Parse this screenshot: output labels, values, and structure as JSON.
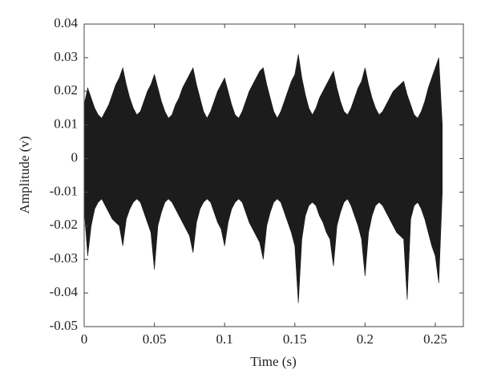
{
  "chart_data": {
    "type": "area",
    "xlabel": "Time (s)",
    "ylabel": "Amplitude (v)",
    "x": [
      0,
      0.0025,
      0.005,
      0.0075,
      0.01,
      0.0125,
      0.015,
      0.0175,
      0.02,
      0.0225,
      0.025,
      0.0275,
      0.03,
      0.0325,
      0.035,
      0.0375,
      0.04,
      0.0425,
      0.045,
      0.0475,
      0.05,
      0.0525,
      0.055,
      0.0575,
      0.06,
      0.0625,
      0.065,
      0.0675,
      0.07,
      0.0725,
      0.075,
      0.0775,
      0.08,
      0.0825,
      0.085,
      0.0875,
      0.09,
      0.0925,
      0.095,
      0.0975,
      0.1,
      0.1025,
      0.105,
      0.1075,
      0.11,
      0.1125,
      0.115,
      0.1175,
      0.12,
      0.1225,
      0.125,
      0.1275,
      0.13,
      0.1325,
      0.135,
      0.1375,
      0.14,
      0.1425,
      0.145,
      0.1475,
      0.15,
      0.1525,
      0.155,
      0.1575,
      0.16,
      0.1625,
      0.165,
      0.1675,
      0.17,
      0.1725,
      0.175,
      0.1775,
      0.18,
      0.1825,
      0.185,
      0.1875,
      0.19,
      0.1925,
      0.195,
      0.1975,
      0.2,
      0.2025,
      0.205,
      0.2075,
      0.21,
      0.2125,
      0.215,
      0.2175,
      0.22,
      0.2225,
      0.225,
      0.2275,
      0.23,
      0.2325,
      0.235,
      0.2375,
      0.24,
      0.2425,
      0.245,
      0.2475,
      0.25,
      0.2525,
      0.255
    ],
    "series": [
      {
        "color": "#1c1c1c",
        "values": [
          0.016,
          0.021,
          0.018,
          0.015,
          0.013,
          0.012,
          0.014,
          0.016,
          0.019,
          0.022,
          0.024,
          0.027,
          0.022,
          0.018,
          0.015,
          0.013,
          0.014,
          0.017,
          0.02,
          0.022,
          0.025,
          0.021,
          0.017,
          0.014,
          0.012,
          0.013,
          0.016,
          0.018,
          0.021,
          0.023,
          0.025,
          0.027,
          0.022,
          0.018,
          0.014,
          0.012,
          0.014,
          0.017,
          0.02,
          0.022,
          0.024,
          0.02,
          0.016,
          0.013,
          0.012,
          0.014,
          0.017,
          0.02,
          0.022,
          0.024,
          0.026,
          0.027,
          0.022,
          0.018,
          0.014,
          0.012,
          0.014,
          0.017,
          0.02,
          0.023,
          0.025,
          0.031,
          0.024,
          0.019,
          0.015,
          0.013,
          0.015,
          0.018,
          0.02,
          0.022,
          0.024,
          0.026,
          0.021,
          0.017,
          0.014,
          0.013,
          0.015,
          0.018,
          0.021,
          0.023,
          0.027,
          0.022,
          0.018,
          0.015,
          0.013,
          0.014,
          0.016,
          0.018,
          0.02,
          0.021,
          0.022,
          0.023,
          0.019,
          0.016,
          0.013,
          0.012,
          0.014,
          0.017,
          0.021,
          0.024,
          0.027,
          0.03,
          0.01
        ]
      },
      {
        "color": "#1c1c1c",
        "values": [
          -0.015,
          -0.029,
          -0.02,
          -0.015,
          -0.013,
          -0.012,
          -0.014,
          -0.016,
          -0.018,
          -0.019,
          -0.02,
          -0.026,
          -0.018,
          -0.015,
          -0.013,
          -0.012,
          -0.013,
          -0.016,
          -0.019,
          -0.022,
          -0.033,
          -0.02,
          -0.016,
          -0.013,
          -0.012,
          -0.013,
          -0.015,
          -0.017,
          -0.019,
          -0.021,
          -0.023,
          -0.028,
          -0.019,
          -0.015,
          -0.013,
          -0.012,
          -0.013,
          -0.016,
          -0.019,
          -0.021,
          -0.026,
          -0.019,
          -0.015,
          -0.013,
          -0.012,
          -0.013,
          -0.016,
          -0.019,
          -0.021,
          -0.023,
          -0.025,
          -0.03,
          -0.02,
          -0.016,
          -0.013,
          -0.012,
          -0.013,
          -0.016,
          -0.019,
          -0.022,
          -0.026,
          -0.043,
          -0.024,
          -0.017,
          -0.014,
          -0.013,
          -0.014,
          -0.017,
          -0.019,
          -0.022,
          -0.024,
          -0.032,
          -0.02,
          -0.016,
          -0.013,
          -0.012,
          -0.014,
          -0.017,
          -0.02,
          -0.024,
          -0.035,
          -0.022,
          -0.017,
          -0.014,
          -0.013,
          -0.014,
          -0.016,
          -0.018,
          -0.02,
          -0.022,
          -0.023,
          -0.024,
          -0.042,
          -0.018,
          -0.014,
          -0.013,
          -0.015,
          -0.018,
          -0.022,
          -0.026,
          -0.029,
          -0.037,
          -0.01
        ]
      }
    ],
    "xlim": [
      0,
      0.27
    ],
    "ylim": [
      -0.05,
      0.04
    ],
    "xticks": [
      0,
      0.05,
      0.1,
      0.15,
      0.2,
      0.25
    ],
    "yticks": [
      -0.05,
      -0.04,
      -0.03,
      -0.02,
      -0.01,
      0,
      0.01,
      0.02,
      0.03,
      0.04
    ],
    "grid": false
  }
}
